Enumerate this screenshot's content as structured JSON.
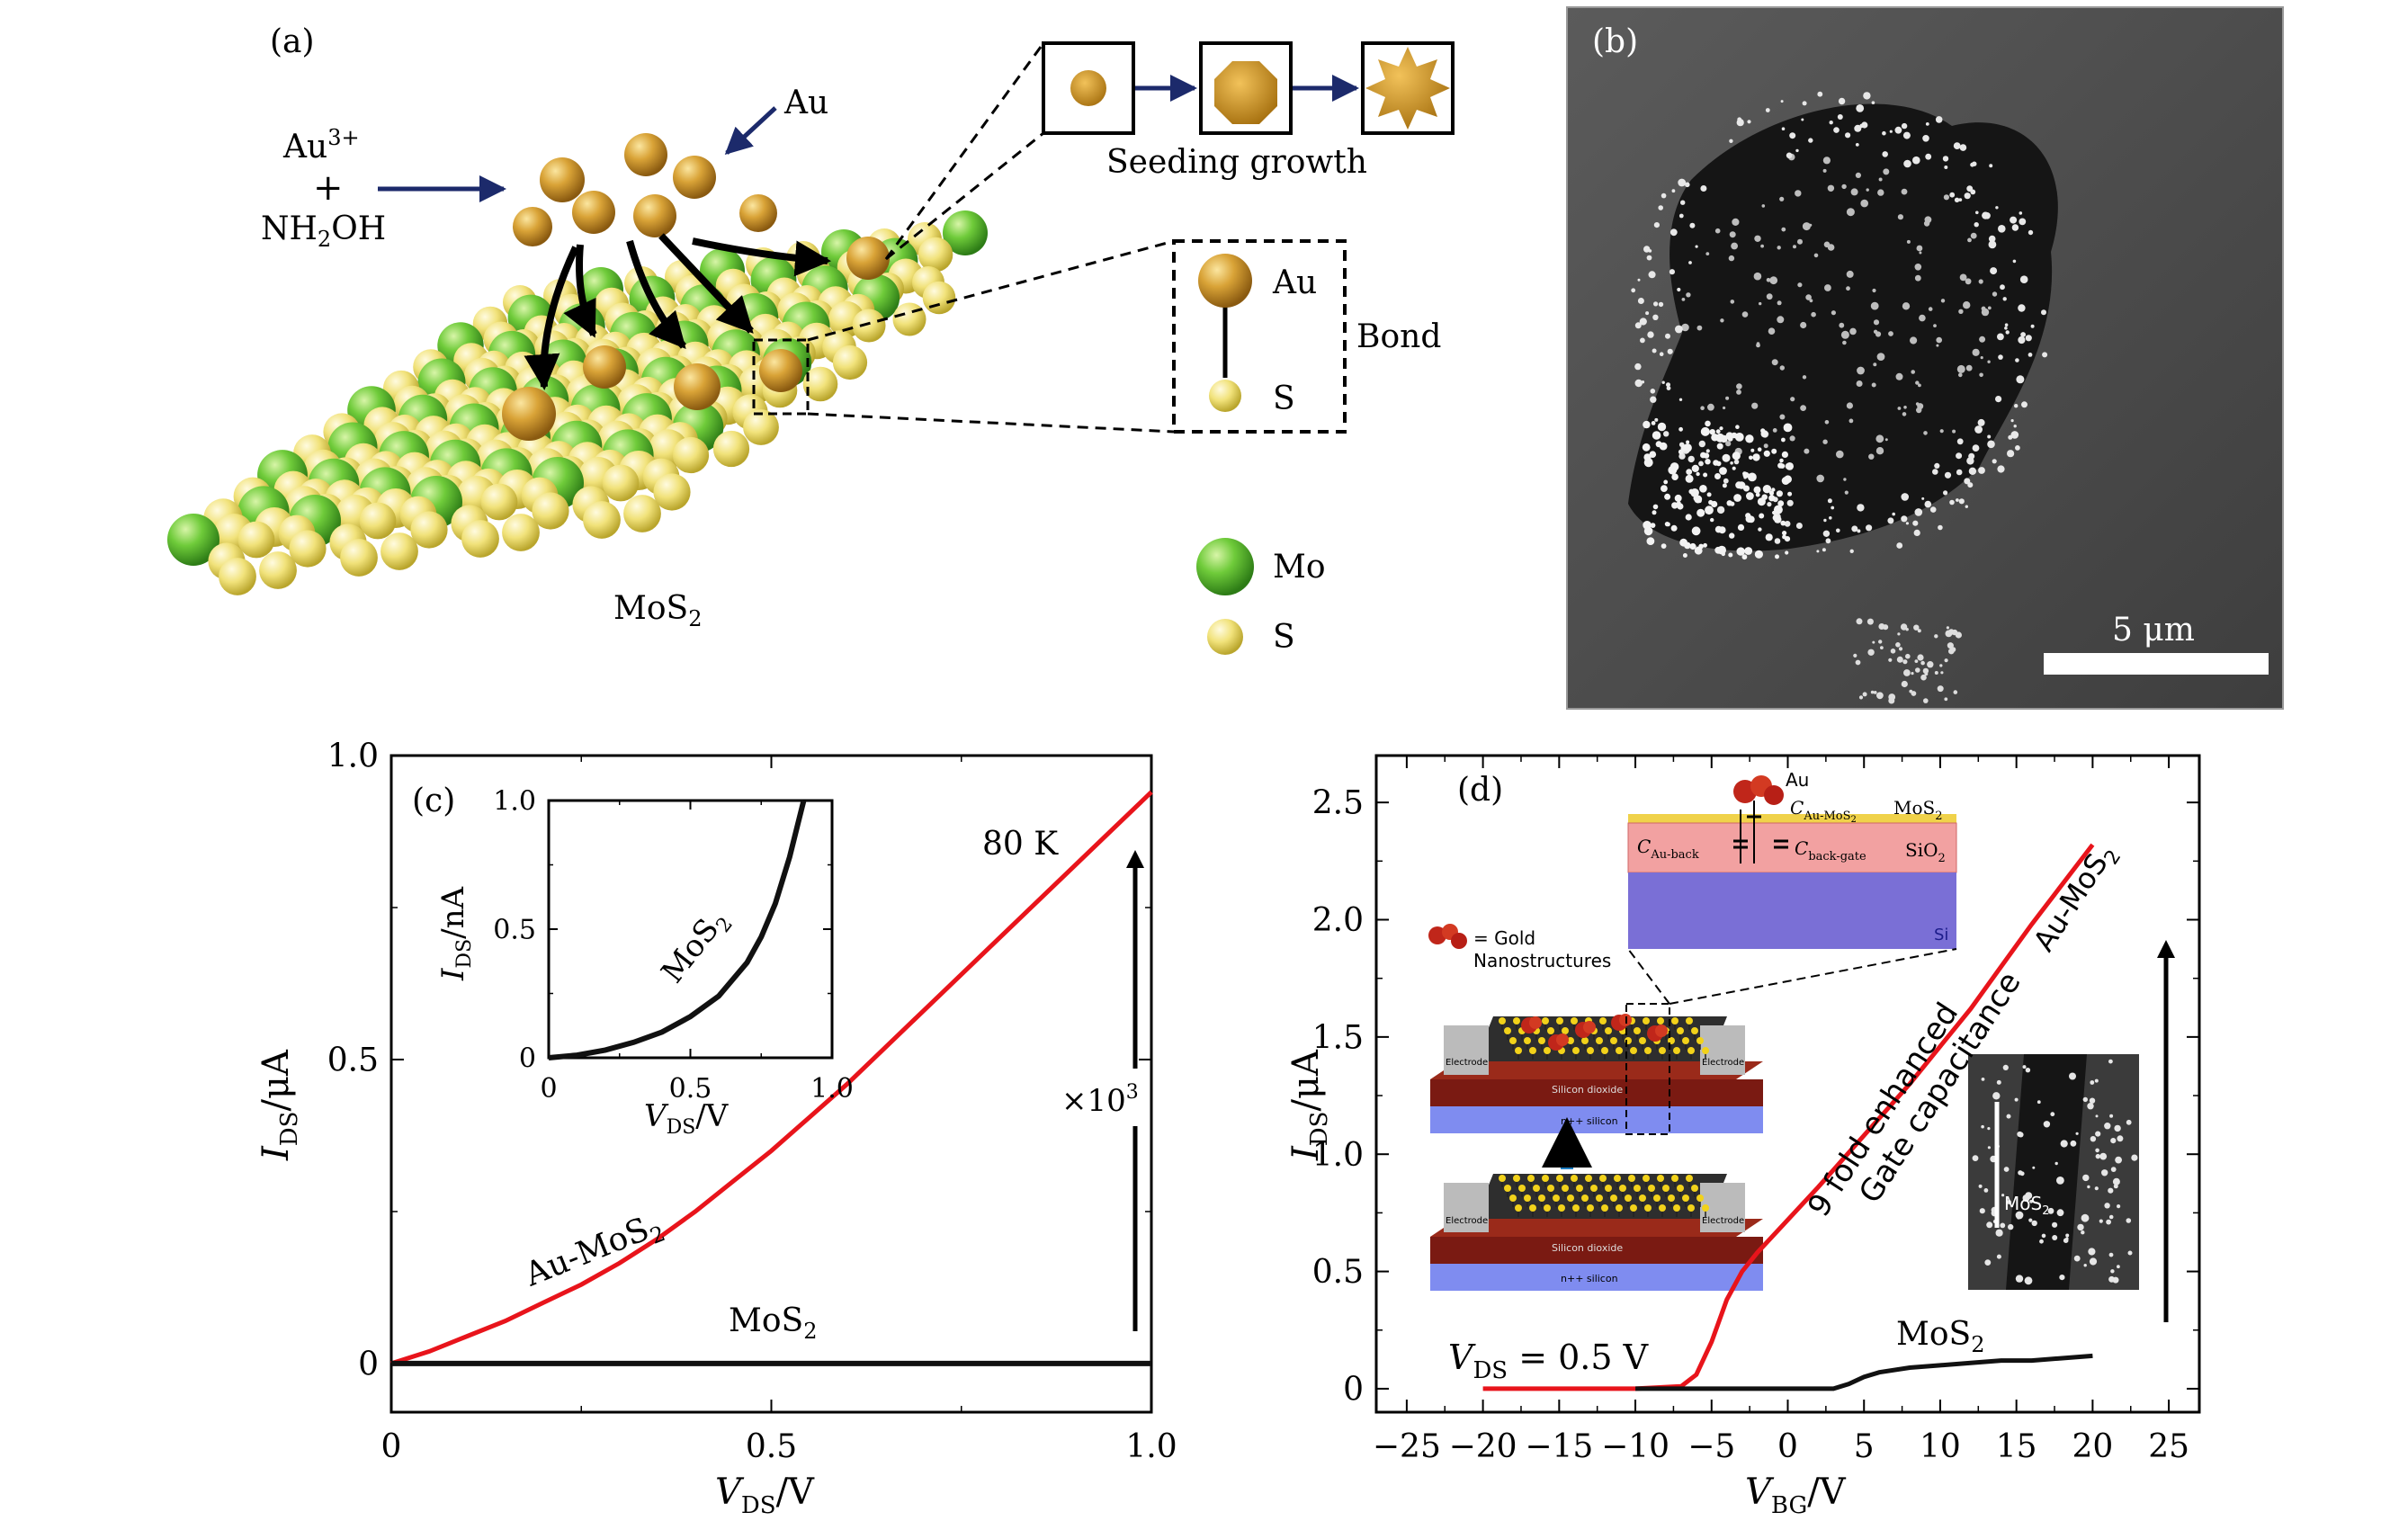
{
  "panels": {
    "a": {
      "label": "(a)",
      "au_ion": "Au",
      "au_ion_sup": "3+",
      "plus": "+",
      "hydroxylamine": "NH",
      "hydroxylamine_sub": "2",
      "hydroxylamine_tail": "OH",
      "au_label": "Au",
      "seeding_growth": "Seeding growth",
      "bond_au": "Au",
      "bond_s": "S",
      "bond": "Bond",
      "legend_mo": "Mo",
      "legend_s": "S",
      "mos2_main": "MoS",
      "mos2_sub": "2"
    },
    "b": {
      "label": "(b)",
      "scale_bar": "5 μm"
    },
    "d_inset": {
      "au": "Au",
      "c_au_mos2_main": "C",
      "c_au_mos2_sub": "Au-MoS",
      "c_au_mos2_sub2": "2",
      "mos2_main": "MoS",
      "mos2_sub": "2",
      "c_au_back_main": "C",
      "c_au_back_sub": "Au-back",
      "c_back_gate_main": "C",
      "c_back_gate_sub": "back-gate",
      "sio2_main": "SiO",
      "sio2_sub": "2",
      "si": "Si",
      "gold_legend_line1": "= Gold",
      "gold_legend_line2": "Nanostructures",
      "electrode": "Electrode",
      "silicon_dioxide": "Silicon dioxide",
      "n_silicon": "n++ silicon",
      "sem_label_main": "MoS",
      "sem_label_sub": "2"
    }
  },
  "chart_data": [
    {
      "type": "line",
      "panel_label": "(c)",
      "xlabel_main": "V",
      "xlabel_sub": "DS",
      "xlabel_unit": "/V",
      "ylabel_main": "I",
      "ylabel_sub": "DS",
      "ylabel_unit": "/μA",
      "xlim": [
        0,
        1.0
      ],
      "ylim": [
        -0.08,
        1.0
      ],
      "xticks": [
        "0",
        "0.5",
        "1.0"
      ],
      "yticks": [
        "0",
        "0.5",
        "1.0"
      ],
      "temperature": "80 K",
      "multiplier_label": "×10",
      "multiplier_exp": "3",
      "series": [
        {
          "name": "Au-MoS2",
          "label_main": "Au-MoS",
          "label_sub": "2",
          "color": "#e8141b",
          "x": [
            0,
            0.05,
            0.1,
            0.15,
            0.2,
            0.25,
            0.3,
            0.35,
            0.4,
            0.45,
            0.5,
            0.55,
            0.6,
            0.65,
            0.7,
            0.75,
            0.8,
            0.85,
            0.9,
            0.95,
            1.0
          ],
          "y": [
            0,
            0.02,
            0.045,
            0.07,
            0.1,
            0.13,
            0.165,
            0.205,
            0.25,
            0.3,
            0.35,
            0.405,
            0.46,
            0.52,
            0.58,
            0.64,
            0.7,
            0.76,
            0.82,
            0.88,
            0.94
          ]
        },
        {
          "name": "MoS2",
          "label_main": "MoS",
          "label_sub": "2",
          "color": "#111111",
          "x": [
            0,
            0.25,
            0.5,
            0.75,
            1.0
          ],
          "y": [
            0,
            0,
            0,
            0,
            0
          ]
        }
      ],
      "inset": {
        "xlabel_main": "V",
        "xlabel_sub": "DS",
        "xlabel_unit": "/V",
        "ylabel_main": "I",
        "ylabel_sub": "DS",
        "ylabel_unit": "/nA",
        "xlim": [
          0,
          1.0
        ],
        "ylim": [
          0,
          1.0
        ],
        "xticks": [
          "0",
          "0.5",
          "1.0"
        ],
        "yticks": [
          "0",
          "0.5",
          "1.0"
        ],
        "series": [
          {
            "name": "MoS2",
            "label_main": "MoS",
            "label_sub": "2",
            "color": "#111111",
            "x": [
              0,
              0.1,
              0.2,
              0.3,
              0.4,
              0.5,
              0.6,
              0.7,
              0.75,
              0.8,
              0.85,
              0.9
            ],
            "y": [
              0,
              0.01,
              0.03,
              0.06,
              0.1,
              0.16,
              0.24,
              0.37,
              0.47,
              0.6,
              0.78,
              1.0
            ]
          }
        ]
      }
    },
    {
      "type": "line",
      "panel_label": "(d)",
      "xlabel_main": "V",
      "xlabel_sub": "BG",
      "xlabel_unit": "/V",
      "ylabel_main": "I",
      "ylabel_sub": "DS",
      "ylabel_unit": "/μA",
      "xlim": [
        -27,
        27
      ],
      "ylim": [
        -0.1,
        2.7
      ],
      "xticks": [
        "−25",
        "−20",
        "−15",
        "−10",
        "−5",
        "0",
        "5",
        "10",
        "15",
        "20",
        "25"
      ],
      "yticks": [
        "0",
        "0.5",
        "1.0",
        "1.5",
        "2.0",
        "2.5"
      ],
      "vds_main": "V",
      "vds_sub": "DS",
      "vds_tail": " = 0.5 V",
      "annotation_line1": "9 fold enhanced",
      "annotation_line2": "Gate capacitance",
      "series": [
        {
          "name": "Au-MoS2",
          "label_main": "Au-MoS",
          "label_sub": "2",
          "color": "#e8141b",
          "x": [
            -20,
            -15,
            -10,
            -7,
            -6,
            -5,
            -4,
            -3,
            -2,
            0,
            2,
            5,
            8,
            10,
            12,
            14,
            16,
            18,
            20
          ],
          "y": [
            0,
            0,
            0,
            0.01,
            0.06,
            0.2,
            0.38,
            0.5,
            0.58,
            0.72,
            0.86,
            1.08,
            1.3,
            1.46,
            1.62,
            1.8,
            1.98,
            2.15,
            2.32
          ]
        },
        {
          "name": "MoS2",
          "label_main": "MoS",
          "label_sub": "2",
          "color": "#111111",
          "x": [
            -10,
            -5,
            0,
            3,
            4,
            5,
            6,
            8,
            10,
            12,
            14,
            16,
            18,
            20
          ],
          "y": [
            0,
            0,
            0,
            0,
            0.02,
            0.05,
            0.07,
            0.09,
            0.1,
            0.11,
            0.12,
            0.12,
            0.13,
            0.14
          ]
        }
      ]
    }
  ]
}
